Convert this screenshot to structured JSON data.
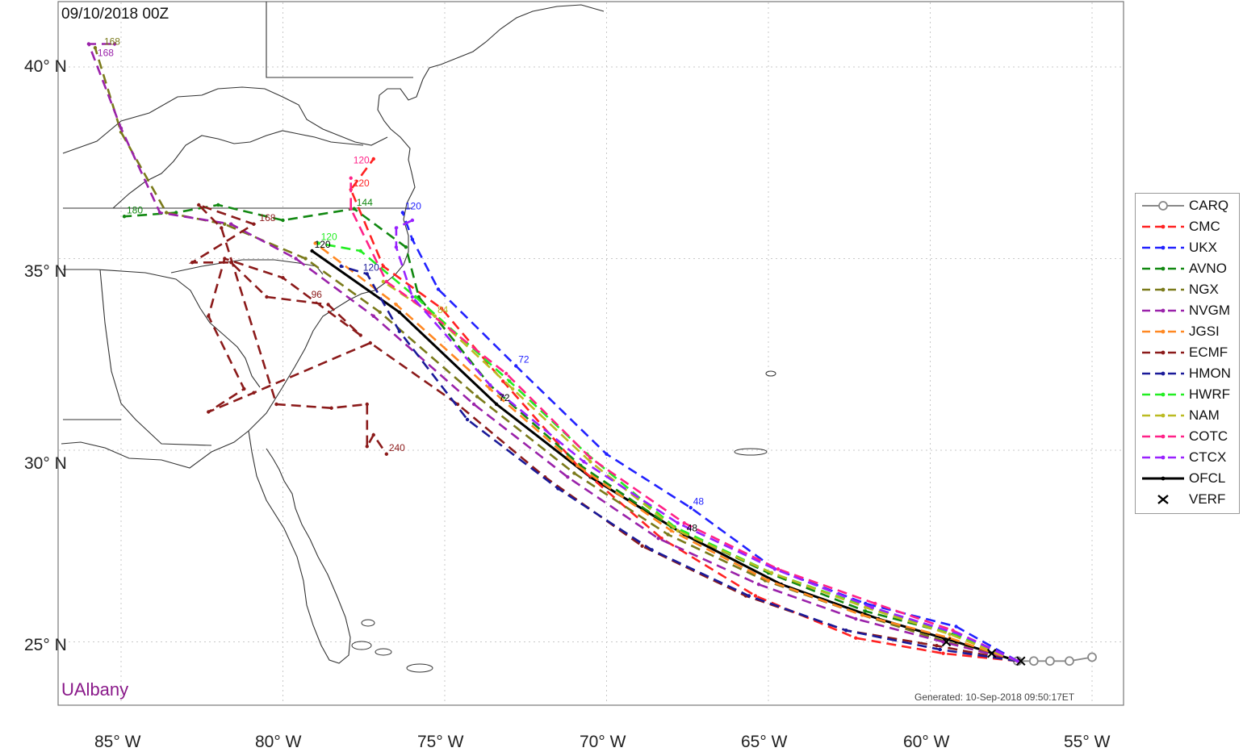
{
  "title": "09/10/2018 00Z",
  "brand": "UAlbany",
  "generated": "Generated: 10-Sep-2018 09:50:17ET",
  "axes": {
    "lon_labels": [
      "85° W",
      "80° W",
      "75° W",
      "70° W",
      "65° W",
      "60° W",
      "55° W"
    ],
    "lat_labels": [
      "40° N",
      "35° N",
      "30° N",
      "25° N"
    ]
  },
  "legend": [
    {
      "name": "CARQ",
      "color": "#888888",
      "style": "solid-circle"
    },
    {
      "name": "CMC",
      "color": "#ff2222",
      "style": "dashed"
    },
    {
      "name": "UKX",
      "color": "#2222ff",
      "style": "dashed"
    },
    {
      "name": "AVNO",
      "color": "#118811",
      "style": "dashed"
    },
    {
      "name": "NGX",
      "color": "#7a7a1a",
      "style": "dashed"
    },
    {
      "name": "NVGM",
      "color": "#9a22aa",
      "style": "dashed"
    },
    {
      "name": "JGSI",
      "color": "#ff8822",
      "style": "dashed"
    },
    {
      "name": "ECMF",
      "color": "#8b1a1a",
      "style": "dashed"
    },
    {
      "name": "HMON",
      "color": "#1a1a99",
      "style": "dashed"
    },
    {
      "name": "HWRF",
      "color": "#22ee22",
      "style": "dashed"
    },
    {
      "name": "NAM",
      "color": "#bbbb22",
      "style": "dashed"
    },
    {
      "name": "COTC",
      "color": "#ff2288",
      "style": "dashed"
    },
    {
      "name": "CTCX",
      "color": "#9922ff",
      "style": "dashed"
    },
    {
      "name": "OFCL",
      "color": "#000000",
      "style": "solid"
    },
    {
      "name": "VERF",
      "color": "#000000",
      "style": "x"
    }
  ],
  "chart_data": {
    "type": "track-map",
    "title": "09/10/2018 00Z",
    "xlim": [
      -86.8,
      -53.4
    ],
    "ylim": [
      23.6,
      41.8
    ],
    "series": [
      {
        "name": "CARQ",
        "points": [
          [
            -55.0,
            24.6
          ],
          [
            -55.7,
            24.5
          ],
          [
            -56.3,
            24.5
          ],
          [
            -56.8,
            24.5
          ],
          [
            -57.3,
            24.5
          ]
        ]
      },
      {
        "name": "OFCL",
        "points": [
          [
            -57.3,
            24.5
          ],
          [
            -59.2,
            25.0
          ],
          [
            -61.6,
            25.6
          ],
          [
            -64.6,
            26.5
          ],
          [
            -67.6,
            27.8
          ],
          [
            -70.5,
            29.3
          ],
          [
            -73.4,
            31.2
          ],
          [
            -76.4,
            33.6
          ],
          [
            -79.1,
            35.2
          ]
        ],
        "labels": [
          [
            "48",
            -67.6,
            27.8
          ],
          [
            "72",
            -73.4,
            31.2
          ],
          [
            "120",
            -79.1,
            35.2
          ]
        ]
      },
      {
        "name": "CMC",
        "points": [
          [
            -57.3,
            24.5
          ],
          [
            -59.6,
            24.7
          ],
          [
            -62.3,
            25.1
          ],
          [
            -65.4,
            26.2
          ],
          [
            -68.3,
            27.7
          ],
          [
            -70.9,
            29.6
          ],
          [
            -73.2,
            31.8
          ],
          [
            -75.1,
            33.7
          ],
          [
            -76.9,
            34.8
          ],
          [
            -77.9,
            36.8
          ],
          [
            -77.2,
            37.6
          ]
        ],
        "labels": [
          [
            "120",
            -77.9,
            36.8
          ]
        ]
      },
      {
        "name": "UKX",
        "points": [
          [
            -57.3,
            24.5
          ],
          [
            -59.2,
            25.4
          ],
          [
            -62.0,
            26.0
          ],
          [
            -64.8,
            26.9
          ],
          [
            -67.4,
            28.5
          ],
          [
            -70.0,
            29.9
          ],
          [
            -72.8,
            32.2
          ],
          [
            -75.2,
            34.2
          ],
          [
            -76.0,
            35.5
          ],
          [
            -76.3,
            36.2
          ]
        ],
        "labels": [
          [
            "48",
            -67.4,
            28.5
          ],
          [
            "72",
            -72.8,
            32.2
          ],
          [
            "120",
            -76.3,
            36.2
          ]
        ]
      },
      {
        "name": "AVNO",
        "points": [
          [
            -57.3,
            24.5
          ],
          [
            -59.3,
            25.2
          ],
          [
            -62.0,
            25.8
          ],
          [
            -65.0,
            26.8
          ],
          [
            -68.0,
            28.0
          ],
          [
            -70.8,
            29.6
          ],
          [
            -73.6,
            31.7
          ],
          [
            -75.8,
            34.0
          ],
          [
            -76.2,
            35.3
          ],
          [
            -77.8,
            36.3
          ],
          [
            -80.0,
            36.0
          ],
          [
            -82.0,
            36.4
          ],
          [
            -83.3,
            36.2
          ],
          [
            -84.9,
            36.1
          ]
        ],
        "labels": [
          [
            "144",
            -77.8,
            36.3
          ],
          [
            "180",
            -84.9,
            36.1
          ]
        ]
      },
      {
        "name": "NGX",
        "points": [
          [
            -57.3,
            24.5
          ],
          [
            -59.5,
            25.0
          ],
          [
            -62.1,
            25.7
          ],
          [
            -65.1,
            26.6
          ],
          [
            -68.1,
            27.8
          ],
          [
            -71.0,
            29.4
          ],
          [
            -74.0,
            31.4
          ],
          [
            -77.0,
            33.6
          ],
          [
            -79.3,
            35.0
          ],
          [
            -81.8,
            35.9
          ],
          [
            -83.6,
            36.2
          ],
          [
            -85.0,
            38.3
          ],
          [
            -85.8,
            40.5
          ]
        ],
        "labels": [
          [
            "168",
            -85.6,
            40.5
          ]
        ]
      },
      {
        "name": "NVGM",
        "points": [
          [
            -57.3,
            24.5
          ],
          [
            -59.6,
            25.0
          ],
          [
            -62.3,
            25.6
          ],
          [
            -65.3,
            26.5
          ],
          [
            -68.4,
            27.7
          ],
          [
            -71.2,
            29.3
          ],
          [
            -74.1,
            31.2
          ],
          [
            -77.2,
            33.5
          ],
          [
            -79.6,
            35.0
          ],
          [
            -81.6,
            35.9
          ],
          [
            -83.8,
            36.2
          ],
          [
            -85.0,
            38.4
          ],
          [
            -86.0,
            40.6
          ],
          [
            -85.2,
            40.6
          ]
        ],
        "labels": [
          [
            "168",
            -85.8,
            40.2
          ]
        ]
      },
      {
        "name": "JGSI",
        "points": [
          [
            -57.3,
            24.5
          ],
          [
            -59.4,
            25.1
          ],
          [
            -62.1,
            25.7
          ],
          [
            -65.0,
            26.6
          ],
          [
            -68.0,
            27.9
          ],
          [
            -70.9,
            29.6
          ],
          [
            -73.6,
            31.6
          ],
          [
            -76.5,
            33.8
          ],
          [
            -79.0,
            35.4
          ]
        ]
      },
      {
        "name": "ECMF",
        "points": [
          [
            -57.3,
            24.5
          ],
          [
            -59.8,
            24.9
          ],
          [
            -62.6,
            25.3
          ],
          [
            -65.7,
            26.2
          ],
          [
            -68.9,
            27.5
          ],
          [
            -71.9,
            29.3
          ],
          [
            -74.6,
            31.2
          ],
          [
            -77.3,
            32.8
          ],
          [
            -80.9,
            31.5
          ],
          [
            -82.3,
            31.0
          ],
          [
            -81.2,
            31.6
          ],
          [
            -82.3,
            33.5
          ],
          [
            -81.8,
            35.0
          ],
          [
            -80.0,
            34.5
          ],
          [
            -77.6,
            33.0
          ],
          [
            -78.6,
            33.8
          ],
          [
            -80.5,
            34.0
          ],
          [
            -81.6,
            34.9
          ],
          [
            -82.8,
            34.9
          ],
          [
            -80.9,
            35.9
          ],
          [
            -82.6,
            36.4
          ],
          [
            -81.9,
            35.8
          ],
          [
            -80.2,
            31.2
          ],
          [
            -78.5,
            31.1
          ],
          [
            -77.4,
            31.2
          ],
          [
            -77.4,
            30.1
          ],
          [
            -77.2,
            30.4
          ],
          [
            -76.8,
            29.9
          ]
        ],
        "labels": [
          [
            "96",
            -79.2,
            33.9
          ],
          [
            "168",
            -80.8,
            35.9
          ],
          [
            "240",
            -76.8,
            29.9
          ]
        ]
      },
      {
        "name": "HMON",
        "points": [
          [
            -57.3,
            24.5
          ],
          [
            -59.7,
            24.8
          ],
          [
            -62.6,
            25.3
          ],
          [
            -65.6,
            26.2
          ],
          [
            -68.6,
            27.4
          ],
          [
            -71.5,
            29.0
          ],
          [
            -74.3,
            30.8
          ],
          [
            -76.4,
            33.1
          ],
          [
            -77.4,
            34.6
          ],
          [
            -78.2,
            34.8
          ]
        ],
        "labels": [
          [
            "120",
            -77.6,
            34.6
          ]
        ]
      },
      {
        "name": "HWRF",
        "points": [
          [
            -57.3,
            24.5
          ],
          [
            -59.2,
            25.2
          ],
          [
            -61.9,
            25.9
          ],
          [
            -64.9,
            26.8
          ],
          [
            -67.9,
            28.0
          ],
          [
            -70.6,
            29.9
          ],
          [
            -73.0,
            31.8
          ],
          [
            -75.9,
            34.0
          ],
          [
            -77.6,
            35.2
          ],
          [
            -78.9,
            35.4
          ]
        ],
        "labels": [
          [
            "120",
            -78.9,
            35.4
          ]
        ]
      },
      {
        "name": "NAM",
        "points": [
          [
            -57.3,
            24.5
          ],
          [
            -59.4,
            25.2
          ],
          [
            -62.0,
            25.9
          ],
          [
            -64.9,
            26.8
          ],
          [
            -67.8,
            27.9
          ],
          [
            -70.5,
            29.7
          ],
          [
            -72.9,
            31.6
          ],
          [
            -75.3,
            33.5
          ],
          [
            -76.9,
            34.4
          ]
        ],
        "labels": [
          [
            "84",
            -75.3,
            33.5
          ]
        ]
      },
      {
        "name": "COTC",
        "points": [
          [
            -57.3,
            24.5
          ],
          [
            -59.3,
            25.3
          ],
          [
            -61.7,
            26.0
          ],
          [
            -64.7,
            26.9
          ],
          [
            -67.6,
            28.1
          ],
          [
            -70.5,
            29.8
          ],
          [
            -73.1,
            32.0
          ],
          [
            -75.5,
            33.6
          ],
          [
            -76.8,
            34.4
          ],
          [
            -77.9,
            36.3
          ],
          [
            -77.9,
            37.1
          ]
        ],
        "labels": [
          [
            "120",
            -77.9,
            37.4
          ]
        ]
      },
      {
        "name": "CTCX",
        "points": [
          [
            -57.3,
            24.5
          ],
          [
            -59.1,
            25.2
          ],
          [
            -61.8,
            25.9
          ],
          [
            -64.8,
            26.9
          ],
          [
            -67.8,
            28.1
          ],
          [
            -70.7,
            29.7
          ],
          [
            -73.6,
            31.7
          ],
          [
            -76.0,
            34.0
          ],
          [
            -76.5,
            35.3
          ],
          [
            -76.5,
            35.8
          ],
          [
            -76.0,
            36.0
          ]
        ]
      }
    ],
    "verification": [
      [
        -57.2,
        24.5
      ],
      [
        -58.1,
        24.7
      ],
      [
        -59.5,
        25.0
      ]
    ]
  }
}
